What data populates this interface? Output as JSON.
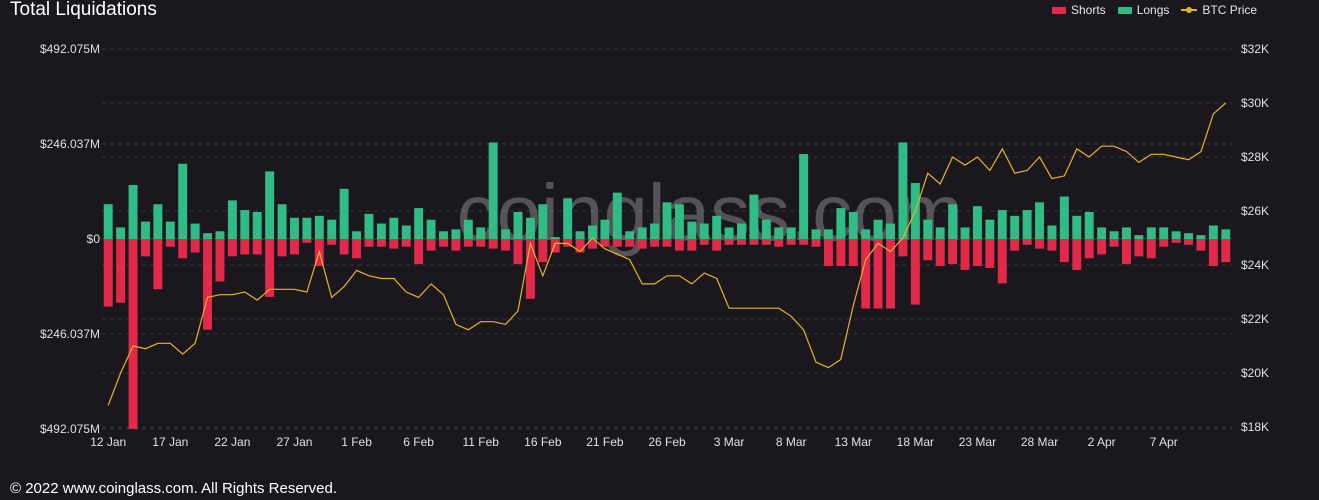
{
  "chart_data": {
    "type": "bar",
    "title": "Total Liquidations",
    "watermark": "coinglass.com",
    "copyright": "© 2022 www.coinglass.com. All Rights Reserved.",
    "legend_placement": "top-right",
    "grid": true,
    "colors": {
      "shorts": "#e2294a",
      "longs": "#2fbd85",
      "btc": "#e6b422",
      "background": "#1a181e",
      "grid": "#3a3940"
    },
    "left_axis": {
      "ylim": [
        -492.075,
        492.075
      ],
      "ticks": [
        492.075,
        246.037,
        0,
        -246.037,
        -492.075
      ],
      "tick_labels": [
        "$492.075M",
        "$246.037M",
        "$0",
        "$246.037M",
        "$492.075M"
      ]
    },
    "right_axis": {
      "ylim": [
        18,
        32
      ],
      "ticks": [
        32,
        30,
        28,
        26,
        24,
        22,
        20,
        18
      ],
      "tick_labels": [
        "$32K",
        "$30K",
        "$28K",
        "$26K",
        "$24K",
        "$22K",
        "$20K",
        "$18K"
      ]
    },
    "x_tick_labels": [
      "12 Jan",
      "17 Jan",
      "22 Jan",
      "27 Jan",
      "1 Feb",
      "6 Feb",
      "11 Feb",
      "16 Feb",
      "21 Feb",
      "26 Feb",
      "3 Mar",
      "8 Mar",
      "13 Mar",
      "18 Mar",
      "23 Mar",
      "28 Mar",
      "2 Apr",
      "7 Apr"
    ],
    "x_tick_interval": 5,
    "series": [
      {
        "name": "Shorts",
        "type": "bar",
        "values": [
          175,
          165,
          492,
          45,
          130,
          20,
          50,
          35,
          235,
          110,
          45,
          40,
          40,
          150,
          45,
          40,
          10,
          70,
          15,
          40,
          50,
          20,
          20,
          25,
          20,
          65,
          30,
          20,
          30,
          20,
          20,
          25,
          30,
          65,
          155,
          60,
          35,
          20,
          35,
          25,
          20,
          20,
          20,
          25,
          20,
          20,
          30,
          30,
          15,
          30,
          15,
          15,
          15,
          15,
          20,
          15,
          15,
          20,
          70,
          70,
          70,
          180,
          180,
          180,
          45,
          170,
          55,
          70,
          65,
          80,
          70,
          75,
          115,
          30,
          15,
          25,
          30,
          60,
          80,
          50,
          40,
          20,
          65,
          45,
          50,
          20,
          10,
          15,
          30,
          70,
          60
        ]
      },
      {
        "name": "Longs",
        "type": "bar",
        "values": [
          90,
          30,
          140,
          45,
          90,
          45,
          195,
          40,
          15,
          20,
          100,
          75,
          70,
          175,
          90,
          55,
          55,
          60,
          50,
          130,
          20,
          65,
          40,
          55,
          35,
          80,
          50,
          20,
          25,
          50,
          30,
          250,
          25,
          70,
          55,
          90,
          5,
          105,
          20,
          35,
          50,
          120,
          20,
          30,
          40,
          95,
          90,
          45,
          40,
          60,
          30,
          40,
          115,
          50,
          30,
          30,
          220,
          25,
          25,
          80,
          70,
          25,
          50,
          40,
          250,
          145,
          50,
          30,
          90,
          30,
          85,
          50,
          75,
          60,
          75,
          95,
          35,
          110,
          60,
          70,
          30,
          20,
          30,
          10,
          30,
          30,
          20,
          15,
          10,
          35,
          25
        ]
      },
      {
        "name": "BTC Price",
        "type": "line",
        "values": [
          18.8,
          20.0,
          21.0,
          20.9,
          21.1,
          21.1,
          20.7,
          21.1,
          22.8,
          22.9,
          22.9,
          23.0,
          22.7,
          23.1,
          23.1,
          23.1,
          23.0,
          24.5,
          22.8,
          23.2,
          23.8,
          23.6,
          23.5,
          23.5,
          23.0,
          22.8,
          23.3,
          22.9,
          21.8,
          21.6,
          21.9,
          21.9,
          21.8,
          22.3,
          24.8,
          23.6,
          24.8,
          24.8,
          24.5,
          25.0,
          24.6,
          24.4,
          24.2,
          23.3,
          23.3,
          23.6,
          23.6,
          23.3,
          23.7,
          23.5,
          22.4,
          22.4,
          22.4,
          22.4,
          22.4,
          22.1,
          21.6,
          20.4,
          20.2,
          20.5,
          22.5,
          24.2,
          24.8,
          24.5,
          25.0,
          26.0,
          27.4,
          27.0,
          28.0,
          27.7,
          28.0,
          27.5,
          28.3,
          27.4,
          27.5,
          28.0,
          27.2,
          27.3,
          28.3,
          28.0,
          28.4,
          28.4,
          28.2,
          27.8,
          28.1,
          28.1,
          28.0,
          27.9,
          28.2,
          29.6,
          30.0
        ]
      }
    ]
  }
}
